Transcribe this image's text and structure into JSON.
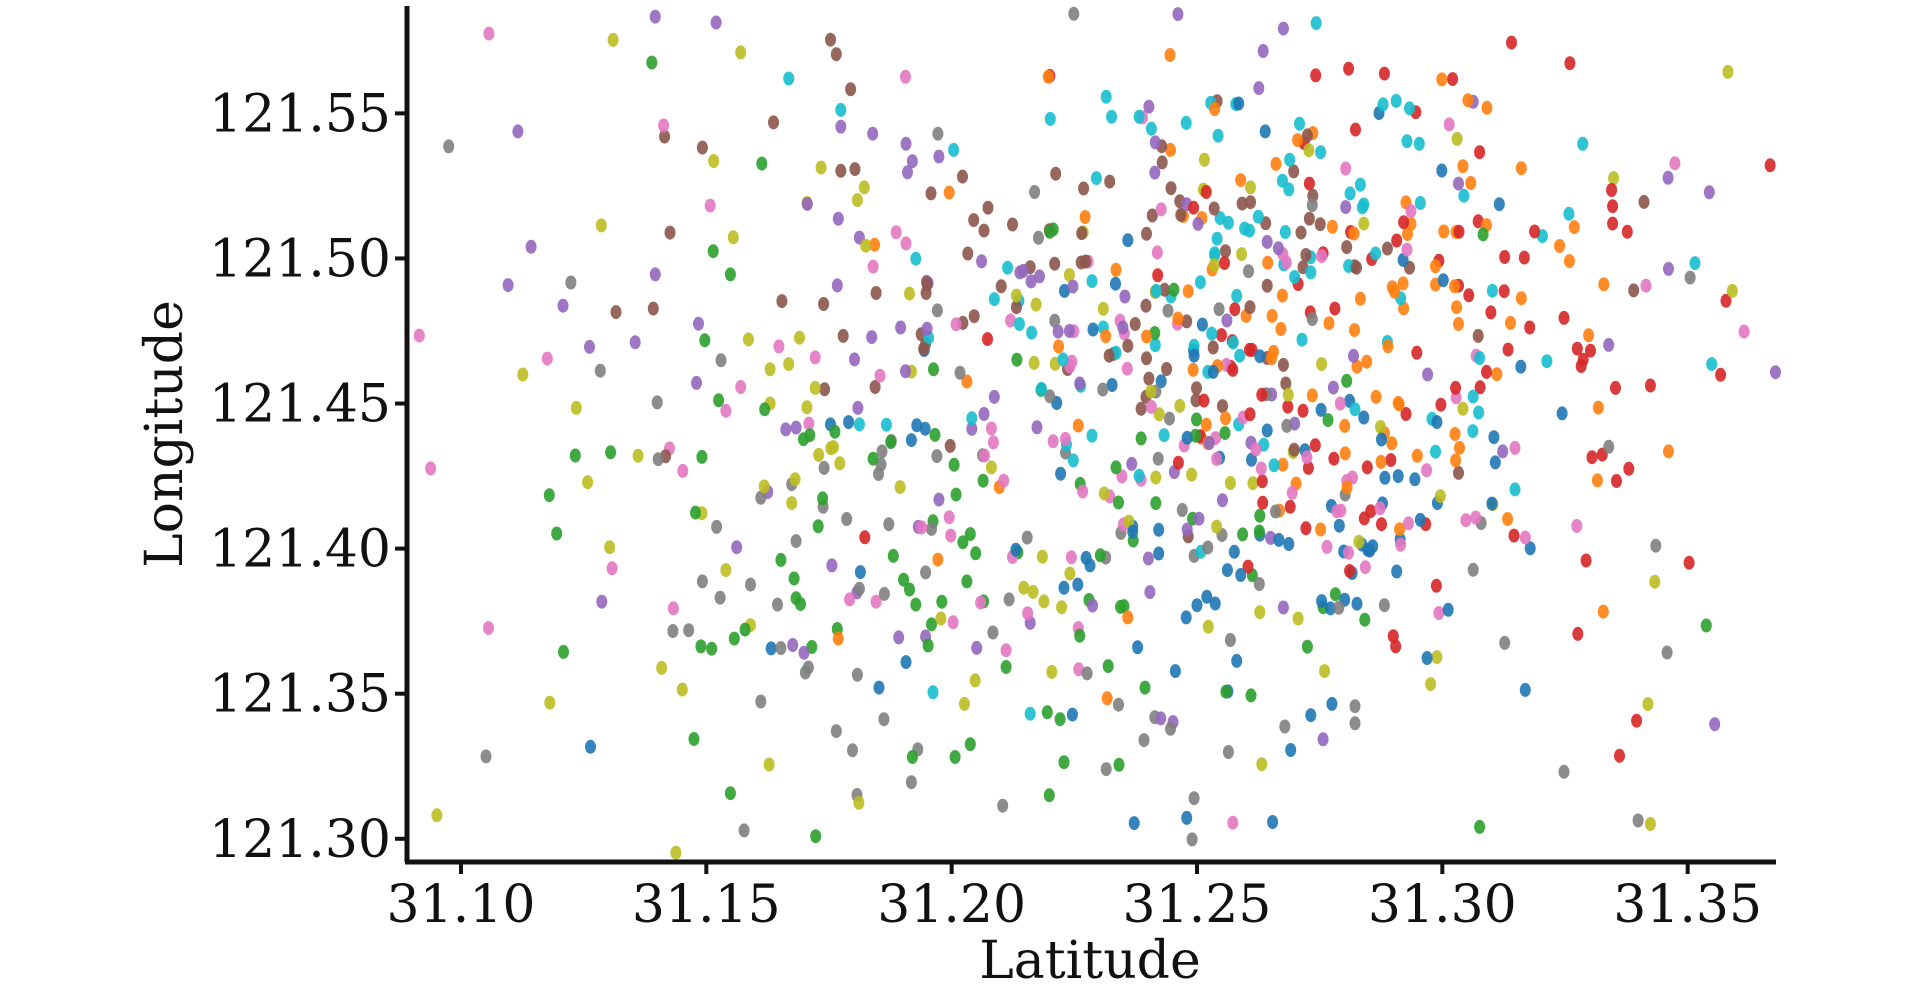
{
  "chart_data": {
    "type": "scatter",
    "title": "",
    "xlabel": "Latitude",
    "ylabel": "Longitude",
    "xlim": [
      31.089,
      31.368
    ],
    "ylim": [
      121.292,
      121.587
    ],
    "x_ticks": [
      "31.10",
      "31.15",
      "31.20",
      "31.25",
      "31.30",
      "31.35"
    ],
    "y_ticks": [
      "121.30",
      "121.35",
      "121.40",
      "121.45",
      "121.50",
      "121.55"
    ],
    "grid": false,
    "legend": "none",
    "palette": [
      "#1f77b4",
      "#ff7f0e",
      "#2ca02c",
      "#d62728",
      "#9467bd",
      "#8c564b",
      "#e377c2",
      "#7f7f7f",
      "#bcbd22",
      "#17becf"
    ],
    "n_points": 1000,
    "points": []
  }
}
